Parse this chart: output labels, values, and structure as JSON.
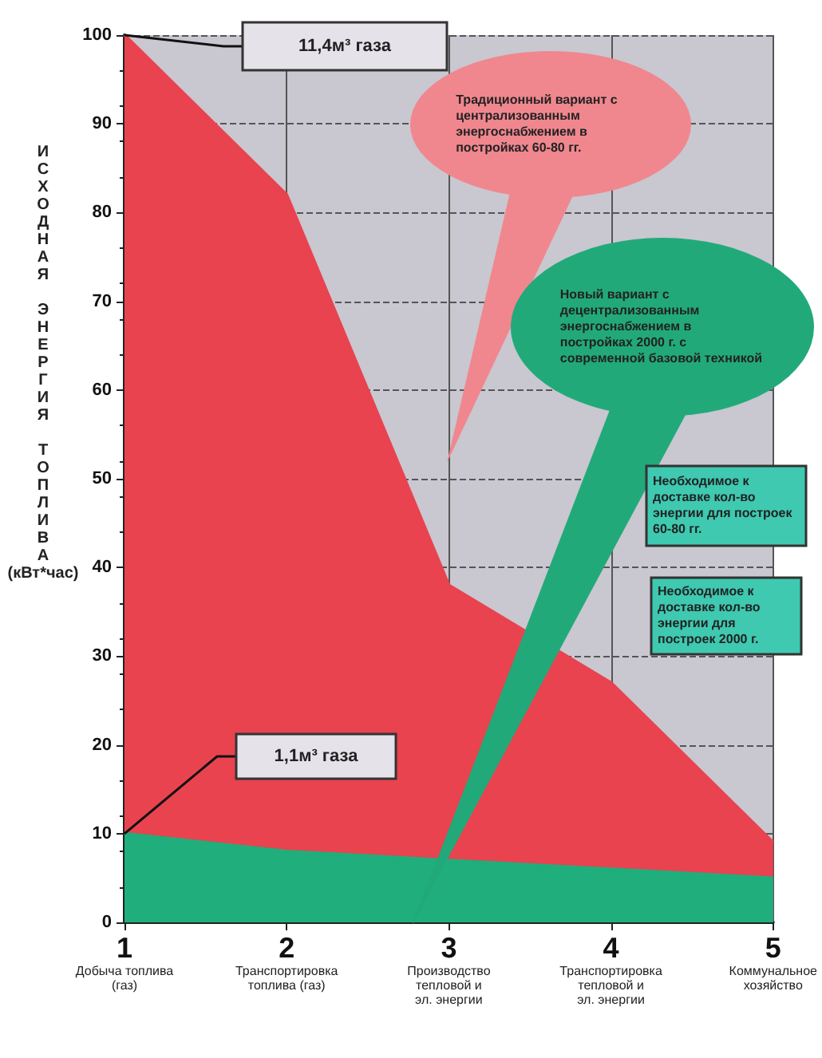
{
  "chart_data": {
    "type": "area",
    "ylabel": "ИСХОДНАЯ ЭНЕРГИЯ ТОПЛИВА (кВт*час)",
    "categories": [
      "1\nДобыча топлива\n(газ)",
      "2\nТранспортировка\nтоплива (газ)",
      "3\nПроизводство\nтепловой и\nэл. энергии",
      "4\nТранспортировка\nтепловой и\nэл. энергии",
      "5\nКоммунальное\nхозяйство"
    ],
    "series": [
      {
        "color": "#e8434f",
        "values": [
          100,
          82,
          38,
          27,
          9
        ]
      },
      {
        "color": "#1fae7c",
        "values": [
          10,
          8,
          7,
          6,
          5
        ]
      }
    ],
    "ylim": [
      0,
      100
    ],
    "yticks": [
      0,
      10,
      20,
      30,
      40,
      50,
      60,
      70,
      80,
      90,
      100
    ],
    "grid": true,
    "annotations": [
      "11,4м³ газа",
      "1,1м³ газа",
      "Традиционный вариант с централизованным энергоснабжением в постройках 60-80 гг.",
      "Новый вариант с децентрализованным энергоснабжением в постройках 2000 г. с современной базовой техникой",
      "Необходимое к доставке кол-во энергии для построек 60-80 гг.",
      "Необходимое к доставке кол-во энергии для построек 2000 г."
    ]
  }
}
